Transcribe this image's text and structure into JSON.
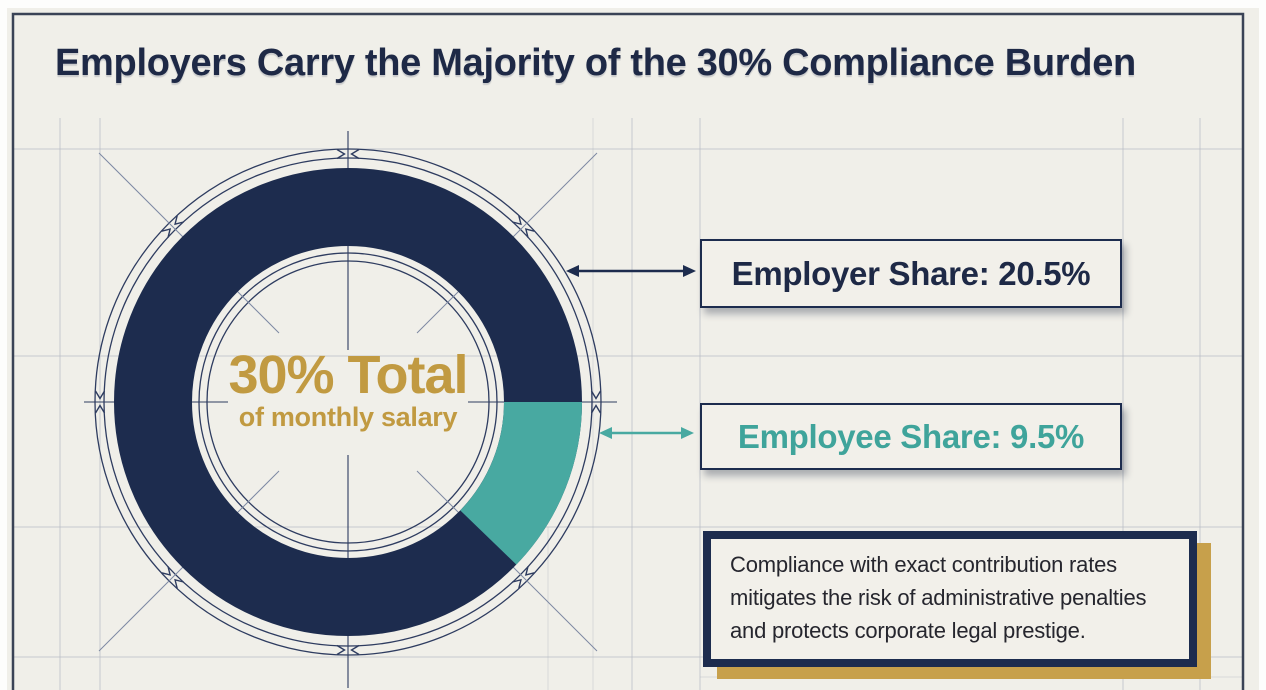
{
  "page": {
    "title": "Employers Carry the Majority of the 30% Compliance Burden"
  },
  "donut": {
    "center_title": "30% Total",
    "center_subtitle": "of monthly salary"
  },
  "labels": {
    "employer": "Employer Share: 20.5%",
    "employee": "Employee Share: 9.5%"
  },
  "callout": {
    "lines": [
      "Compliance with exact contribution rates",
      "mitigates the risk of administrative penalties",
      "and protects corporate legal prestige."
    ]
  },
  "colors": {
    "background": "#f0efe9",
    "navy": "#1d2c4e",
    "navy_text": "#1e2946",
    "teal": "#48a9a1",
    "teal_text": "#3fa49b",
    "gold": "#c19a41",
    "gold_shadow": "#c7a04b",
    "frame": "#3a4356",
    "grid": "#b9bdc6",
    "guide": "#2e3c60",
    "diag": "#7d89a3",
    "callout_text": "#26262e"
  },
  "chart_data": {
    "type": "pie",
    "title": "Employers Carry the Majority of the 30% Compliance Burden",
    "slices": [
      {
        "label": "Employer Share",
        "value": 20.5,
        "color": "#1d2c4e"
      },
      {
        "label": "Employee Share",
        "value": 9.5,
        "color": "#48a9a1"
      }
    ],
    "total": 30,
    "units": "percent of monthly salary",
    "center_label": "30% Total",
    "center_sublabel": "of monthly salary",
    "legend_position": "right",
    "layout": {
      "donut": true,
      "blueprint_guides": true,
      "employee_start_deg": 0,
      "employee_sweep_deg": 44,
      "note": "segment drawn stylized, not proportional to values"
    }
  }
}
